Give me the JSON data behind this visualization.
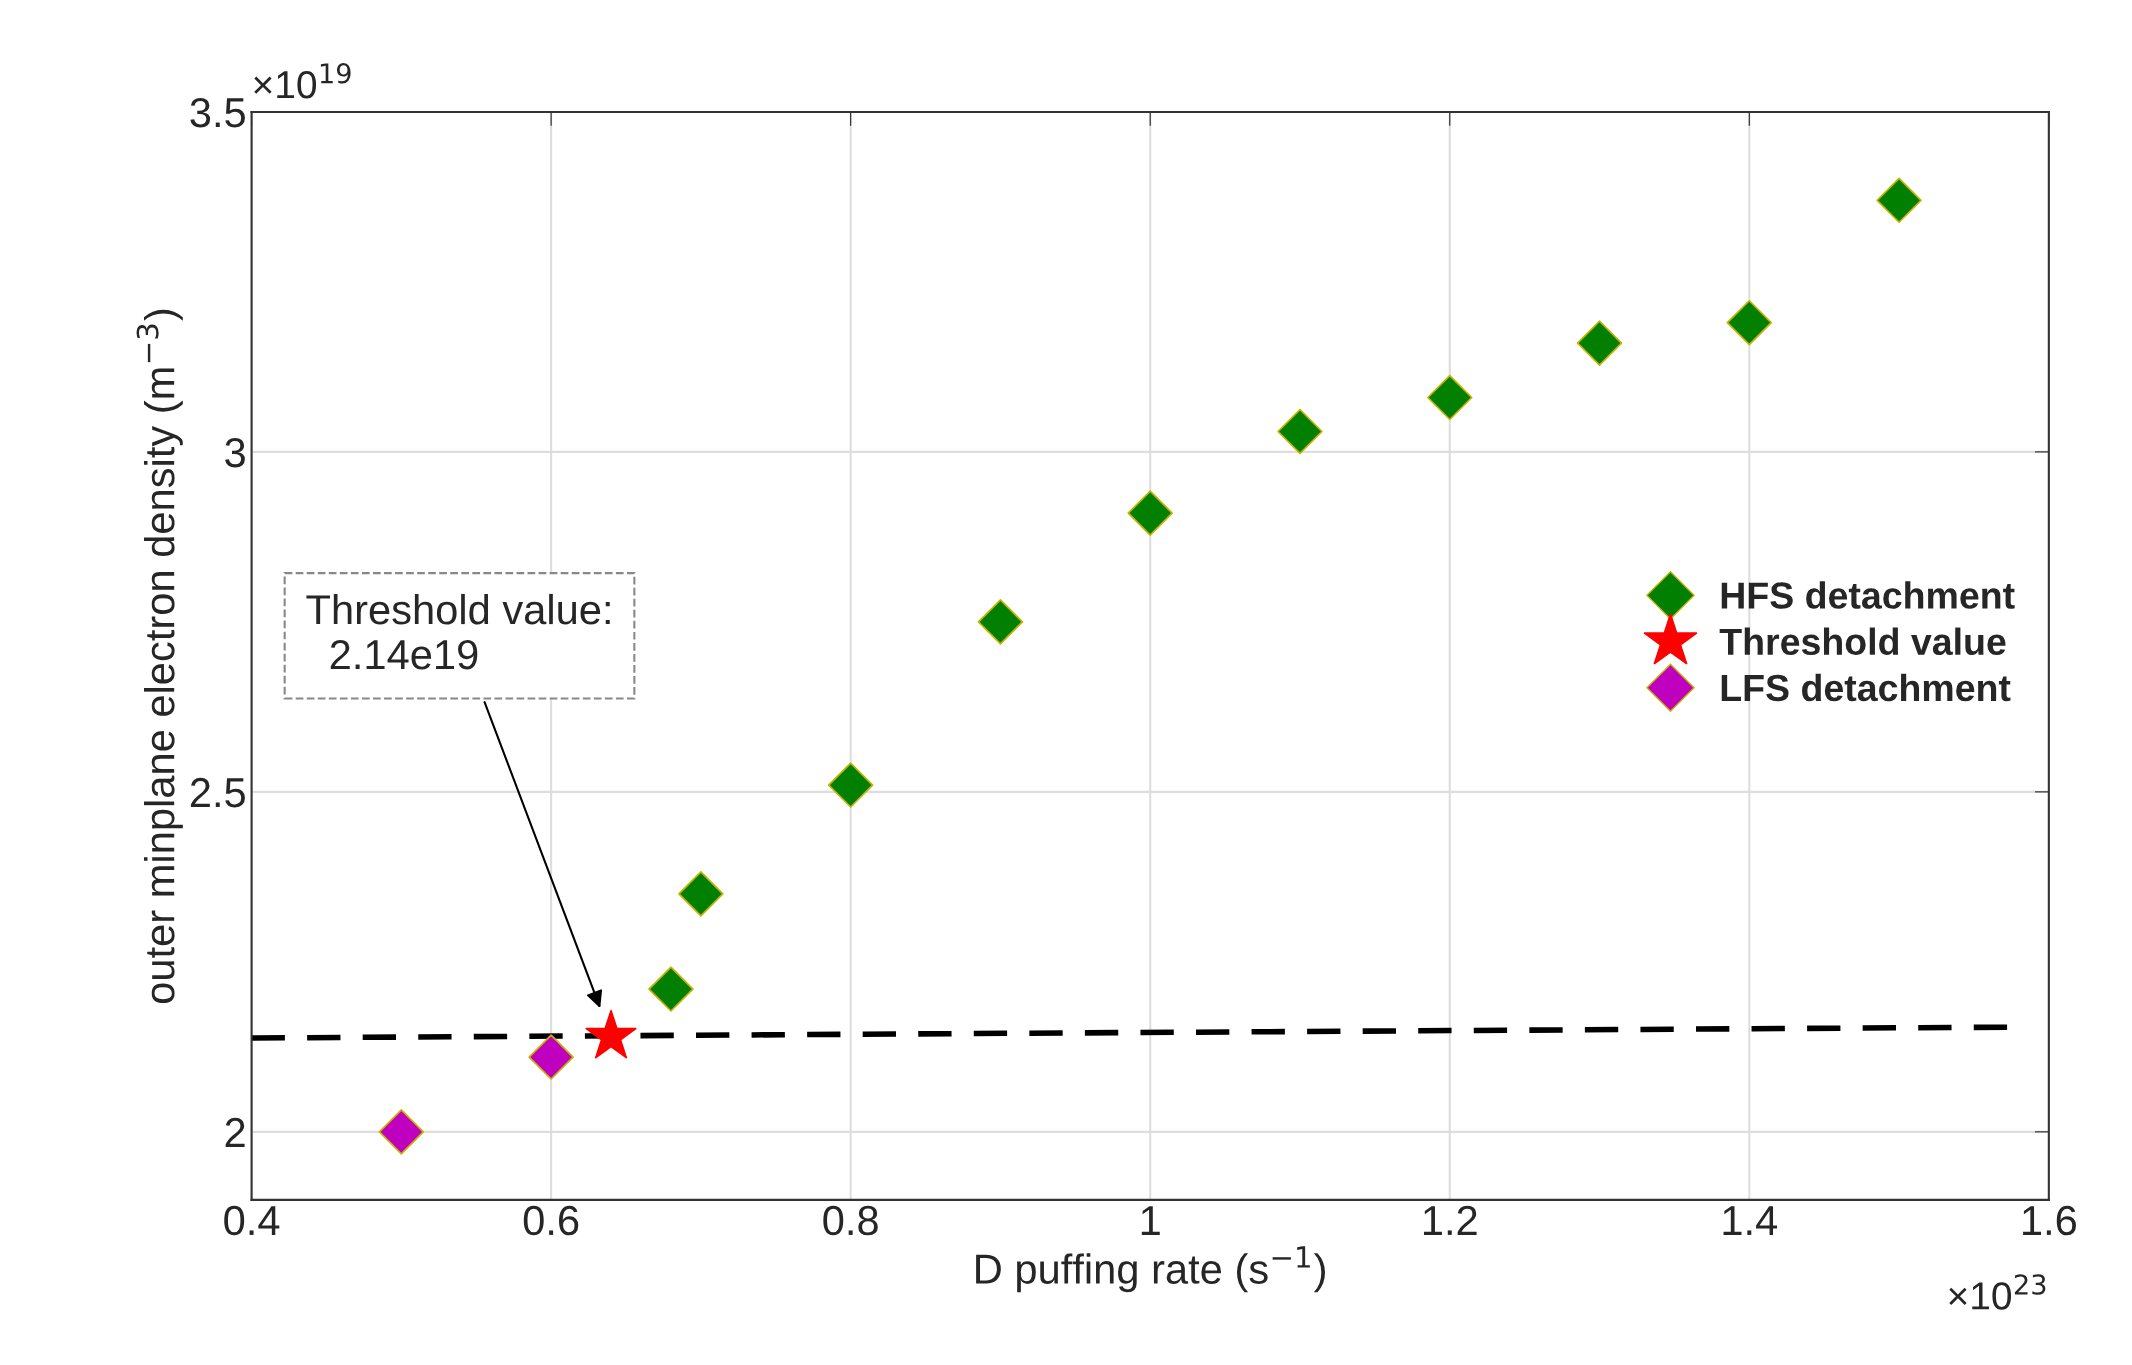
{
  "chart_data": {
    "type": "scatter",
    "xlabel": "D puffing rate (s$^{−1}$)",
    "ylabel": "outer minplane electron density (m$^{−3}$)",
    "xlim": [
      0.4,
      1.6
    ],
    "xticks": [
      0.4,
      0.6,
      0.8,
      1,
      1.2,
      1.4,
      1.6
    ],
    "ylim": [
      1.9,
      3.5
    ],
    "yticks": [
      2,
      2.5,
      3,
      3.5
    ],
    "grid": true,
    "legend": "center right",
    "annotations": [
      "×10$^{19}$",
      "×10$^{23}$",
      "Threshold value:\n  2.14e19"
    ],
    "series": [
      {
        "type": "line",
        "color": "#000000",
        "line_style": "dashed",
        "marker": "none",
        "x": [
          0.4,
          1.575
        ],
        "values": [
          2.138,
          2.154
        ]
      },
      {
        "name": "HFS detachment",
        "color": "#007f00",
        "marker": "diamond",
        "x": [
          0.68,
          0.7,
          0.8,
          0.9,
          1.0,
          1.1,
          1.2,
          1.3,
          1.4,
          1.5
        ],
        "values": [
          2.21,
          2.35,
          2.51,
          2.75,
          2.91,
          3.03,
          3.08,
          3.16,
          3.19,
          3.37
        ]
      },
      {
        "name": "Threshold value",
        "color": "#ff0000",
        "marker": "star",
        "x": [
          0.64
        ],
        "values": [
          2.14
        ]
      },
      {
        "name": "LFS detachment",
        "color": "#bf00bf",
        "marker": "diamond",
        "x": [
          0.5,
          0.6
        ],
        "values": [
          2.0,
          2.11
        ]
      }
    ]
  }
}
